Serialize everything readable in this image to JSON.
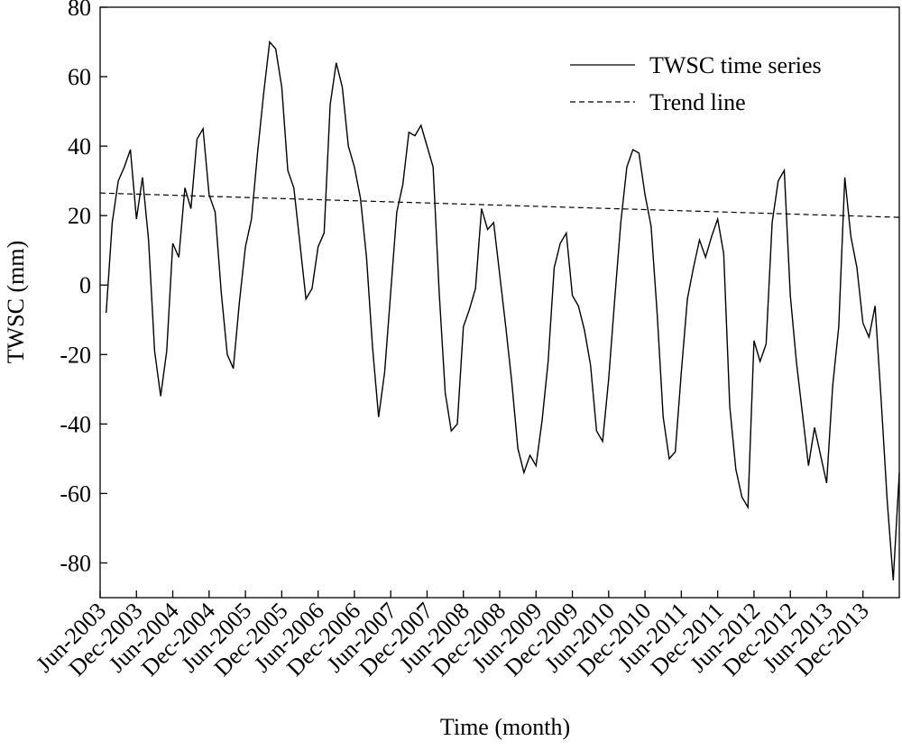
{
  "chart_data": {
    "type": "line",
    "xlabel": "Time (month)",
    "ylabel": "TWSC (mm)",
    "categories": [
      "Jun-2003",
      null,
      null,
      null,
      null,
      null,
      "Dec-2003",
      null,
      null,
      null,
      null,
      null,
      "Jun-2004",
      null,
      null,
      null,
      null,
      null,
      "Dec-2004",
      null,
      null,
      null,
      null,
      null,
      "Jun-2005",
      null,
      null,
      null,
      null,
      null,
      "Dec-2005",
      null,
      null,
      null,
      null,
      null,
      "Jun-2006",
      null,
      null,
      null,
      null,
      null,
      "Dec-2006",
      null,
      null,
      null,
      null,
      null,
      "Jun-2007",
      null,
      null,
      null,
      null,
      null,
      "Dec-2007",
      null,
      null,
      null,
      null,
      null,
      "Jun-2008",
      null,
      null,
      null,
      null,
      null,
      "Dec-2008",
      null,
      null,
      null,
      null,
      null,
      "Jun-2009",
      null,
      null,
      null,
      null,
      null,
      "Dec-2009",
      null,
      null,
      null,
      null,
      null,
      "Jun-2010",
      null,
      null,
      null,
      null,
      null,
      "Dec-2010",
      null,
      null,
      null,
      null,
      null,
      "Jun-2011",
      null,
      null,
      null,
      null,
      null,
      "Dec-2011",
      null,
      null,
      null,
      null,
      null,
      "Jun-2012",
      null,
      null,
      null,
      null,
      null,
      "Dec-2012",
      null,
      null,
      null,
      null,
      null,
      "Jun-2013",
      null,
      null,
      null,
      null,
      null,
      "Dec-2013",
      null,
      null,
      null,
      null,
      null,
      null
    ],
    "series": [
      {
        "name": "TWSC time series",
        "color": "#000000",
        "style": "solid",
        "values": [
          null,
          -8,
          18,
          30,
          34,
          39,
          19,
          31,
          13,
          -19,
          -32,
          -19,
          12,
          8,
          28,
          22,
          42,
          45,
          26,
          21,
          -2,
          -20,
          -24,
          -5,
          11,
          19,
          38,
          55,
          70,
          68,
          57,
          33,
          28,
          12,
          -4,
          -1,
          11,
          15,
          52,
          64,
          57,
          40,
          34,
          25,
          8,
          -18,
          -38,
          -25,
          -2,
          21,
          29,
          44,
          43,
          46,
          40,
          34,
          -2,
          -31,
          -42,
          -40,
          -12,
          -7,
          -1,
          22,
          16,
          18,
          3,
          -12,
          -28,
          -47,
          -54,
          -49,
          -52,
          -39,
          -22,
          5,
          12,
          15,
          -3,
          -6,
          -13,
          -23,
          -42,
          -45,
          -27,
          -4,
          18,
          34,
          39,
          38,
          26,
          17,
          -8,
          -38,
          -50,
          -48,
          -25,
          -4,
          5,
          13,
          8,
          14,
          19,
          9,
          -35,
          -53,
          -61,
          -64,
          -16,
          -22,
          -17,
          18,
          30,
          33,
          -3,
          -22,
          -37,
          -52,
          -41,
          -49,
          -57,
          -29,
          -12,
          31,
          14,
          5,
          -11,
          -15,
          -6,
          -33,
          -62,
          -85,
          -54
        ]
      }
    ],
    "trend": {
      "name": "Trend line",
      "color": "#000000",
      "style": "dashed",
      "values": [
        26.5,
        19.5
      ]
    },
    "ylim": [
      -90,
      80
    ],
    "yticks": [
      -80,
      -60,
      -40,
      -20,
      0,
      20,
      40,
      60,
      80
    ],
    "legend": "upper right",
    "grid": false
  }
}
